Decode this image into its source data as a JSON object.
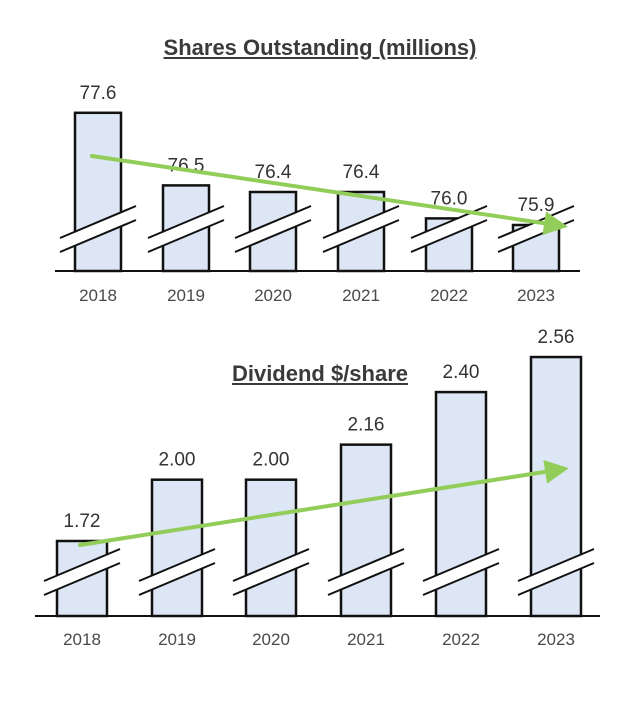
{
  "chart_data": [
    {
      "type": "bar",
      "title": "Shares Outstanding (millions)",
      "categories": [
        "2018",
        "2019",
        "2020",
        "2021",
        "2022",
        "2023"
      ],
      "values": [
        77.6,
        76.5,
        76.4,
        76.4,
        76.0,
        75.9
      ],
      "value_labels": [
        "77.6",
        "76.5",
        "76.4",
        "76.4",
        "76.0",
        "75.9"
      ],
      "axis_break": true,
      "trend_arrow": "down",
      "colors": {
        "bar_fill": "#dce6f4",
        "bar_stroke": "#111111",
        "arrow": "#92cd5a"
      }
    },
    {
      "type": "bar",
      "title": "Dividend $/share",
      "categories": [
        "2018",
        "2019",
        "2020",
        "2021",
        "2022",
        "2023"
      ],
      "values": [
        1.72,
        2.0,
        2.0,
        2.16,
        2.4,
        2.56
      ],
      "value_labels": [
        "1.72",
        "2.00",
        "2.00",
        "2.16",
        "2.40",
        "2.56"
      ],
      "axis_break": true,
      "trend_arrow": "up",
      "colors": {
        "bar_fill": "#dce6f4",
        "bar_stroke": "#111111",
        "arrow": "#92cd5a"
      }
    }
  ]
}
